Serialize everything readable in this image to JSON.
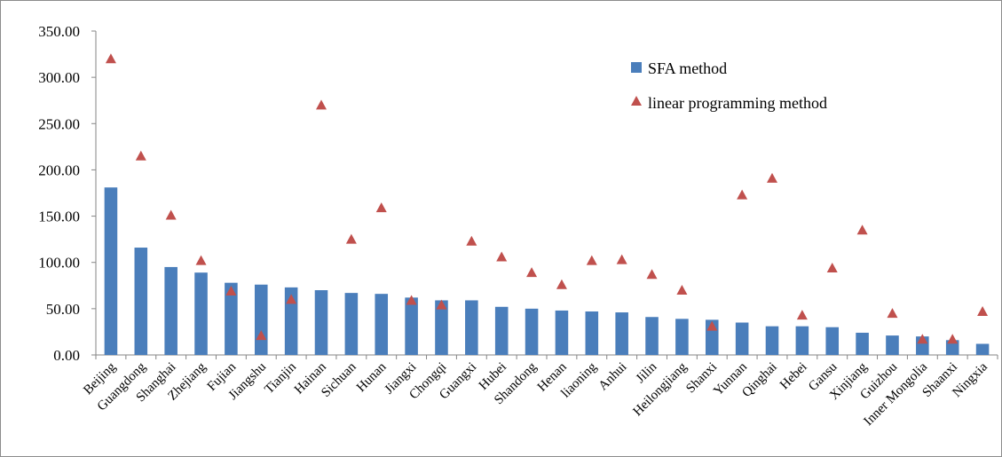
{
  "chart_data": {
    "type": "bar",
    "categories": [
      "Beijing",
      "Guangdong",
      "Shanghai",
      "Zhejiang",
      "Fujian",
      "Jiangshu",
      "Tianjin",
      "Hainan",
      "Sichuan",
      "Hunan",
      "Jiangxi",
      "Chongqi",
      "Guangxi",
      "Hubei",
      "Shandong",
      "Henan",
      "liaoning",
      "Anhui",
      "Jilin",
      "Heilongjiang",
      "Shanxi",
      "Yunnan",
      "Qinghai",
      "Hebei",
      "Gansu",
      "Xinjiang",
      "Guizhou",
      "Inner Mongolia",
      "Shaanxi",
      "Ningxia"
    ],
    "series": [
      {
        "name": "SFA method",
        "type": "bar",
        "color": "#4a7ebb",
        "values": [
          181,
          116,
          95,
          89,
          78,
          76,
          73,
          70,
          67,
          66,
          62,
          59,
          59,
          52,
          50,
          48,
          47,
          46,
          41,
          39,
          38,
          35,
          31,
          31,
          30,
          24,
          21,
          20,
          16,
          12
        ]
      },
      {
        "name": "linear programming method",
        "type": "scatter",
        "marker": "triangle",
        "color": "#c0504d",
        "values": [
          320,
          215,
          151,
          102,
          69,
          21,
          60,
          270,
          125,
          159,
          59,
          54,
          123,
          106,
          89,
          76,
          102,
          103,
          87,
          70,
          31,
          173,
          191,
          43,
          94,
          135,
          45,
          17,
          17,
          47
        ]
      }
    ],
    "yticks": [
      "0.00",
      "50.00",
      "100.00",
      "150.00",
      "200.00",
      "250.00",
      "300.00",
      "350.00"
    ],
    "ylim": [
      0,
      350
    ],
    "legend_position": "top-right",
    "grid": false
  }
}
